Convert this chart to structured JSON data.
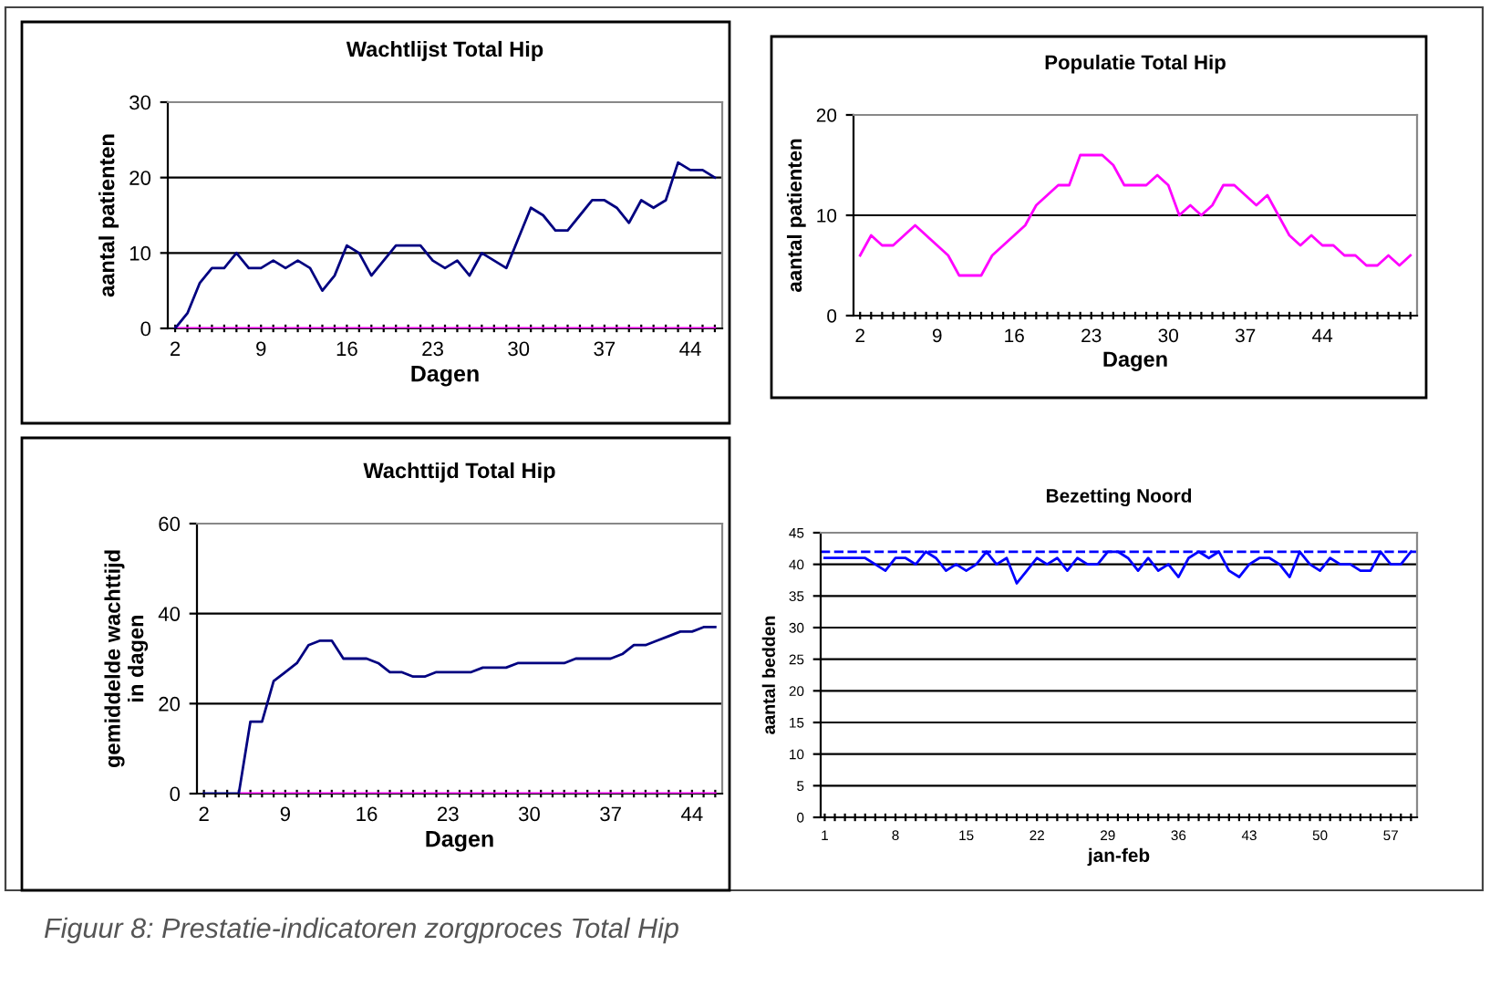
{
  "chart_data": [
    {
      "type": "line",
      "title": "Wachtlijst Total Hip",
      "xlabel": "Dagen",
      "ylabel": "aantal patienten",
      "x": [
        2,
        3,
        4,
        5,
        6,
        7,
        8,
        9,
        10,
        11,
        12,
        13,
        14,
        15,
        16,
        17,
        18,
        19,
        20,
        21,
        22,
        23,
        24,
        25,
        26,
        27,
        28,
        29,
        30,
        31,
        32,
        33,
        34,
        35,
        36,
        37,
        38,
        39,
        40,
        41,
        42,
        43,
        44,
        45,
        46
      ],
      "series": [
        {
          "color": "#000080",
          "values": [
            0,
            2,
            6,
            8,
            8,
            10,
            8,
            8,
            9,
            8,
            9,
            8,
            5,
            7,
            11,
            10,
            7,
            9,
            11,
            11,
            11,
            9,
            8,
            9,
            7,
            10,
            9,
            8,
            12,
            16,
            15,
            13,
            13,
            15,
            17,
            17,
            16,
            14,
            17,
            16,
            17,
            22,
            21,
            21,
            20
          ]
        },
        {
          "color": "#ff00ff",
          "values": [
            0,
            0,
            0,
            0,
            0,
            0,
            0,
            0,
            0,
            0,
            0,
            0,
            0,
            0,
            0,
            0,
            0,
            0,
            0,
            0,
            0,
            0,
            0,
            0,
            0,
            0,
            0,
            0,
            0,
            0,
            0,
            0,
            0,
            0,
            0,
            0,
            0,
            0,
            0,
            0,
            0,
            0,
            0,
            0,
            0
          ]
        }
      ],
      "xlim": [
        1.4,
        46.6
      ],
      "xticks": [
        2,
        9,
        16,
        23,
        30,
        37,
        44
      ],
      "ylim": [
        0,
        30
      ],
      "yticks": [
        0,
        10,
        20,
        30
      ],
      "grid": "y",
      "legend": false,
      "marker": "none",
      "line_style": "solid"
    },
    {
      "type": "line",
      "title": "Populatie Total Hip",
      "xlabel": "Dagen",
      "ylabel": "aantal patienten",
      "x": [
        2,
        3,
        4,
        5,
        6,
        7,
        8,
        9,
        10,
        11,
        12,
        13,
        14,
        15,
        16,
        17,
        18,
        19,
        20,
        21,
        22,
        23,
        24,
        25,
        26,
        27,
        28,
        29,
        30,
        31,
        32,
        33,
        34,
        35,
        36,
        37,
        38,
        39,
        40,
        41,
        42,
        43,
        44,
        45,
        46,
        47,
        48,
        49,
        50,
        51,
        52
      ],
      "series": [
        {
          "color": "#ff00ff",
          "values": [
            6,
            8,
            7,
            7,
            8,
            9,
            8,
            7,
            6,
            4,
            4,
            4,
            6,
            7,
            8,
            9,
            11,
            12,
            13,
            13,
            16,
            16,
            16,
            15,
            13,
            13,
            13,
            14,
            13,
            10,
            11,
            10,
            11,
            13,
            13,
            12,
            11,
            12,
            10,
            8,
            7,
            8,
            7,
            7,
            6,
            6,
            5,
            5,
            6,
            5,
            6
          ]
        }
      ],
      "xlim": [
        1.4,
        52.6
      ],
      "xticks": [
        2,
        9,
        16,
        23,
        30,
        37,
        44
      ],
      "ylim": [
        0,
        20
      ],
      "yticks": [
        0,
        10,
        20
      ],
      "grid": "y",
      "legend": false,
      "marker": "none",
      "line_style": "solid"
    },
    {
      "type": "line",
      "title": "Wachttijd Total Hip",
      "xlabel": "Dagen",
      "ylabel": "gemiddelde wachttijd\nin dagen",
      "x": [
        2,
        3,
        4,
        5,
        6,
        7,
        8,
        9,
        10,
        11,
        12,
        13,
        14,
        15,
        16,
        17,
        18,
        19,
        20,
        21,
        22,
        23,
        24,
        25,
        26,
        27,
        28,
        29,
        30,
        31,
        32,
        33,
        34,
        35,
        36,
        37,
        38,
        39,
        40,
        41,
        42,
        43,
        44,
        45,
        46
      ],
      "series": [
        {
          "color": "#000080",
          "values": [
            0,
            0,
            0,
            0,
            16,
            16,
            25,
            27,
            29,
            33,
            34,
            34,
            30,
            30,
            30,
            29,
            27,
            27,
            26,
            26,
            27,
            27,
            27,
            27,
            28,
            28,
            28,
            29,
            29,
            29,
            29,
            29,
            30,
            30,
            30,
            30,
            31,
            33,
            33,
            34,
            35,
            36,
            36,
            37,
            37
          ]
        },
        {
          "color": "#ff00ff",
          "values": [
            null,
            null,
            null,
            0,
            0,
            0,
            0,
            0,
            0,
            0,
            0,
            0,
            0,
            0,
            0,
            0,
            0,
            0,
            0,
            0,
            0,
            0,
            0,
            0,
            0,
            0,
            0,
            0,
            0,
            0,
            0,
            0,
            0,
            0,
            0,
            0,
            0,
            0,
            0,
            0,
            0,
            0,
            0,
            0,
            0
          ]
        }
      ],
      "xlim": [
        1.4,
        46.6
      ],
      "xticks": [
        2,
        9,
        16,
        23,
        30,
        37,
        44
      ],
      "ylim": [
        0,
        60
      ],
      "yticks": [
        0,
        20,
        40,
        60
      ],
      "grid": "y",
      "legend": false,
      "marker": "none",
      "line_style": "solid"
    },
    {
      "type": "line",
      "title": "Bezetting Noord",
      "xlabel": "jan-feb",
      "ylabel": "aantal bedden",
      "x": [
        1,
        2,
        3,
        4,
        5,
        6,
        7,
        8,
        9,
        10,
        11,
        12,
        13,
        14,
        15,
        16,
        17,
        18,
        19,
        20,
        21,
        22,
        23,
        24,
        25,
        26,
        27,
        28,
        29,
        30,
        31,
        32,
        33,
        34,
        35,
        36,
        37,
        38,
        39,
        40,
        41,
        42,
        43,
        44,
        45,
        46,
        47,
        48,
        49,
        50,
        51,
        52,
        53,
        54,
        55,
        56,
        57,
        58,
        59
      ],
      "series": [
        {
          "color": "#0000ff",
          "values": [
            41,
            41,
            41,
            41,
            41,
            40,
            39,
            41,
            41,
            40,
            42,
            41,
            39,
            40,
            39,
            40,
            42,
            40,
            41,
            37,
            39,
            41,
            40,
            41,
            39,
            41,
            40,
            40,
            42,
            42,
            41,
            39,
            41,
            39,
            40,
            38,
            41,
            42,
            41,
            42,
            39,
            38,
            40,
            41,
            41,
            40,
            38,
            42,
            40,
            39,
            41,
            40,
            40,
            39,
            39,
            42,
            40,
            40,
            42
          ]
        }
      ],
      "ref_lines": [
        {
          "axis": "y",
          "value": 42,
          "color": "#0000ff",
          "line_style": "dashed"
        }
      ],
      "xlim": [
        0.6,
        59.6
      ],
      "xticks": [
        1,
        8,
        15,
        22,
        29,
        36,
        43,
        50,
        57
      ],
      "ylim": [
        0,
        45
      ],
      "yticks": [
        0,
        5,
        10,
        15,
        20,
        25,
        30,
        35,
        40,
        45
      ],
      "grid": "y",
      "legend": false,
      "marker": "none",
      "line_style": "solid",
      "annotations": [
        "Figuur 8: Prestatie-indicatoren zorgproces Total Hip"
      ]
    }
  ]
}
